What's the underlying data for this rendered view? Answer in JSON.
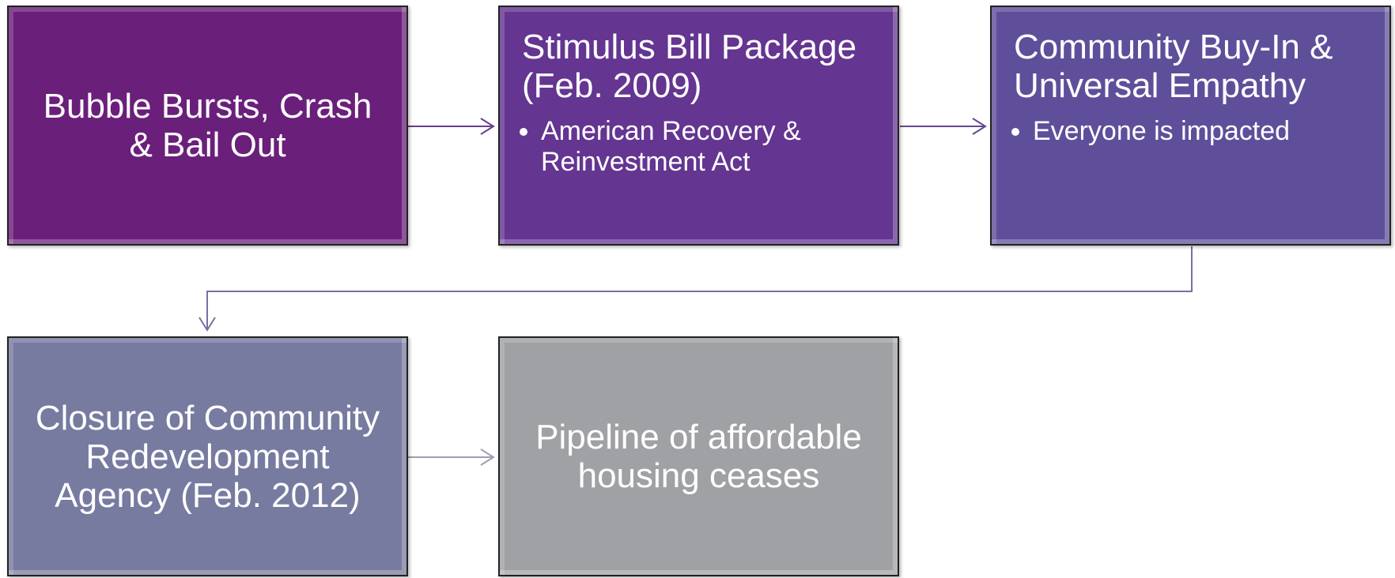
{
  "nodes": [
    {
      "title": "Bubble Bursts, Crash & Bail Out",
      "bullets": []
    },
    {
      "title": "Stimulus Bill Package (Feb. 2009)",
      "bullets": [
        "American Recovery & Reinvestment Act"
      ]
    },
    {
      "title": "Community Buy-In & Universal Empathy",
      "bullets": [
        "Everyone is impacted"
      ]
    },
    {
      "title": "Closure of Community Redevelopment Agency (Feb. 2012)",
      "bullets": []
    },
    {
      "title": "Pipeline of affordable housing ceases",
      "bullets": []
    }
  ]
}
